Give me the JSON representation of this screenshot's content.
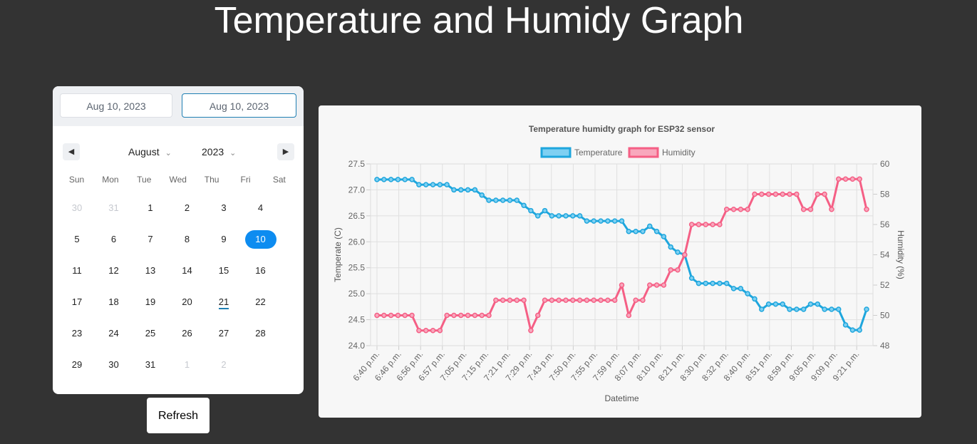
{
  "page": {
    "title": "Temperature and Humidy Graph"
  },
  "picker": {
    "start_date": "Aug 10, 2023",
    "end_date": "Aug 10, 2023",
    "month": "August",
    "year": "2023",
    "weekdays": [
      "Sun",
      "Mon",
      "Tue",
      "Wed",
      "Thu",
      "Fri",
      "Sat"
    ],
    "weeks": [
      [
        "30",
        "31",
        "1",
        "2",
        "3",
        "4",
        ""
      ],
      [
        "5",
        "6",
        "7",
        "8",
        "9",
        "10",
        ""
      ],
      [
        "11",
        "12",
        "13",
        "14",
        "15",
        "16",
        ""
      ],
      [
        "17",
        "18",
        "19",
        "20",
        "21",
        "22",
        ""
      ],
      [
        "23",
        "24",
        "25",
        "26",
        "27",
        "28",
        ""
      ],
      [
        "29",
        "30",
        "31",
        "1",
        "2",
        "",
        ""
      ]
    ],
    "selected_day": "10",
    "today_day": "21",
    "refresh_label": "Refresh",
    "prev_icon": "caret-left-icon",
    "next_icon": "caret-right-icon",
    "chevron_icon": "chevron-down-icon"
  },
  "chart_data": {
    "type": "line",
    "title": "Temperature humidty graph for ESP32 sensor",
    "xlabel": "Datetime",
    "ylabel_left": "Temperate (C)",
    "ylabel_right": "Humidity (%)",
    "legend_position": "top",
    "grid": true,
    "ylim_left": [
      24.0,
      27.5
    ],
    "ylim_right": [
      48,
      60
    ],
    "yticks_left": [
      "24.0",
      "24.5",
      "25.0",
      "25.5",
      "26.0",
      "26.5",
      "27.0",
      "27.5"
    ],
    "yticks_right": [
      "48",
      "50",
      "52",
      "54",
      "56",
      "58",
      "60"
    ],
    "x_tick_labels": [
      "6:40 p.m.",
      "6:46 p.m.",
      "6:56 p.m.",
      "6:57 p.m.",
      "7:05 p.m.",
      "7:15 p.m.",
      "7:21 p.m.",
      "7:29 p.m.",
      "7:43 p.m.",
      "7:50 p.m.",
      "7:55 p.m.",
      "7:59 p.m.",
      "8:07 p.m.",
      "8:10 p.m.",
      "8:21 p.m.",
      "8:30 p.m.",
      "8:32 p.m.",
      "8:40 p.m.",
      "8:51 p.m.",
      "8:59 p.m.",
      "9:05 p.m.",
      "9:09 p.m.",
      "9:21 p.m."
    ],
    "series": [
      {
        "name": "Temperature",
        "axis": "left",
        "color": "#1ea6dd",
        "fill": "#7fd0f2",
        "values": [
          27.2,
          27.2,
          27.2,
          27.2,
          27.2,
          27.2,
          27.1,
          27.1,
          27.1,
          27.1,
          27.1,
          27.0,
          27.0,
          27.0,
          27.0,
          26.9,
          26.8,
          26.8,
          26.8,
          26.8,
          26.8,
          26.7,
          26.6,
          26.5,
          26.6,
          26.5,
          26.5,
          26.5,
          26.5,
          26.5,
          26.4,
          26.4,
          26.4,
          26.4,
          26.4,
          26.4,
          26.2,
          26.2,
          26.2,
          26.3,
          26.2,
          26.1,
          25.9,
          25.8,
          25.75,
          25.3,
          25.2,
          25.2,
          25.2,
          25.2,
          25.2,
          25.1,
          25.1,
          25.0,
          24.9,
          24.7,
          24.8,
          24.8,
          24.8,
          24.7,
          24.7,
          24.7,
          24.8,
          24.8,
          24.7,
          24.7,
          24.7,
          24.4,
          24.3,
          24.3,
          24.7
        ]
      },
      {
        "name": "Humidity",
        "axis": "right",
        "color": "#f55f85",
        "fill": "#f8a8bd",
        "values": [
          50,
          50,
          50,
          50,
          50,
          50,
          49,
          49,
          49,
          49,
          50,
          50,
          50,
          50,
          50,
          50,
          50,
          51,
          51,
          51,
          51,
          51,
          49,
          50,
          51,
          51,
          51,
          51,
          51,
          51,
          51,
          51,
          51,
          51,
          51,
          52,
          50,
          51,
          51,
          52,
          52,
          52,
          53,
          53,
          54,
          56,
          56,
          56,
          56,
          56,
          57,
          57,
          57,
          57,
          58,
          58,
          58,
          58,
          58,
          58,
          58,
          57,
          57,
          58,
          58,
          57,
          59,
          59,
          59,
          59,
          57
        ]
      }
    ]
  }
}
